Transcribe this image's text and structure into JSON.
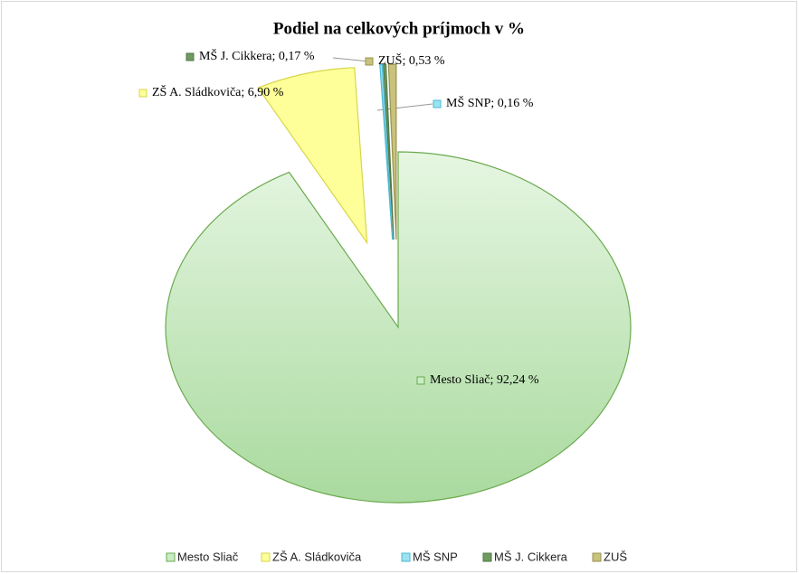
{
  "chart_data": {
    "type": "pie",
    "title": "Podiel na celkových príjmoch v %",
    "categories": [
      "Mesto Sliač",
      "ZŠ A. Sládkoviča",
      "MŠ SNP",
      "MŠ J. Cikkera",
      "ZUŠ"
    ],
    "values": [
      92.24,
      6.9,
      0.16,
      0.17,
      0.53
    ],
    "value_labels": [
      "Mesto Sliač; 92,24 %",
      "ZŠ A. Sládkoviča; 6,90 %",
      "MŠ SNP; 0,16 %",
      "MŠ J. Cikkera; 0,17 %",
      "ZUŠ; 0,53 %"
    ],
    "colors": [
      "#c9ecc4",
      "#ffff99",
      "#9be3f2",
      "#6f9a62",
      "#c9c27c"
    ],
    "legend": "bottom"
  }
}
